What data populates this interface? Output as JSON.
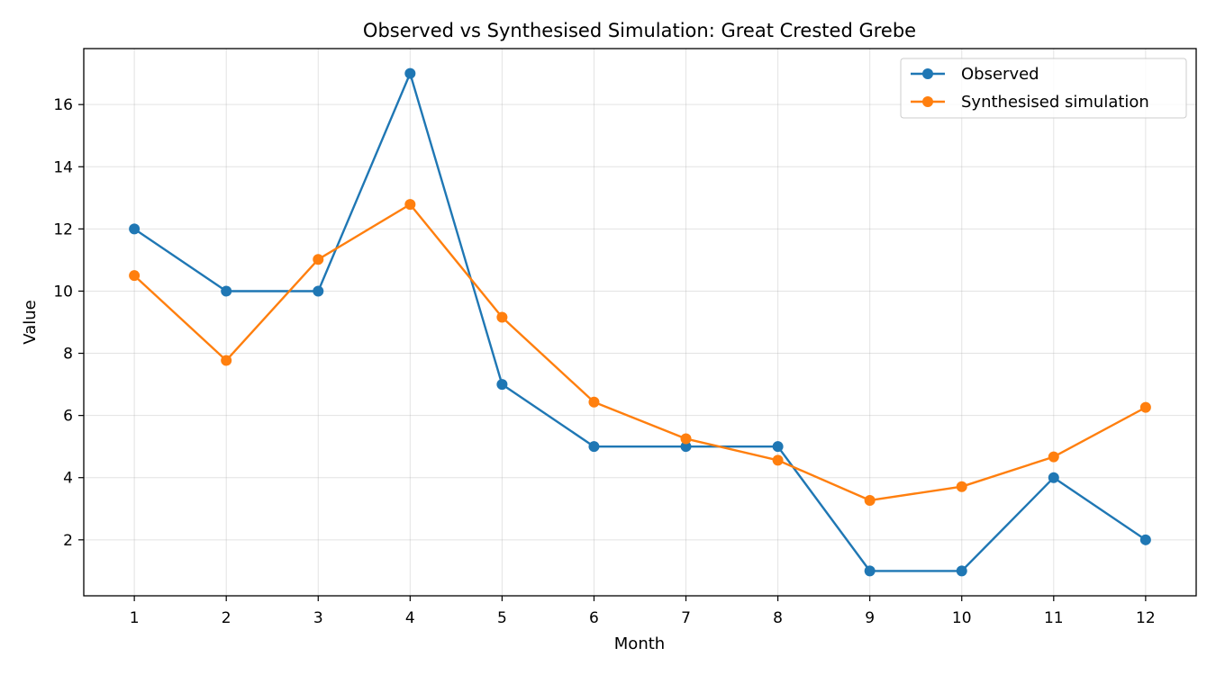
{
  "chart_data": {
    "type": "line",
    "title": "Observed vs Synthesised Simulation: Great Crested Grebe",
    "xlabel": "Month",
    "ylabel": "Value",
    "x": [
      1,
      2,
      3,
      4,
      5,
      6,
      7,
      8,
      9,
      10,
      11,
      12
    ],
    "xlim": [
      0.45,
      12.55
    ],
    "ylim": [
      0.2,
      17.8
    ],
    "yticks": [
      2,
      4,
      6,
      8,
      10,
      12,
      14,
      16
    ],
    "grid": true,
    "legend_position": "top-right",
    "series": [
      {
        "name": "Observed",
        "color": "#1f77b4",
        "marker": "circle",
        "values": [
          12,
          10,
          10,
          17,
          7,
          5,
          5,
          5,
          1,
          1,
          4,
          2
        ]
      },
      {
        "name": "Synthesised simulation",
        "color": "#ff7f0e",
        "marker": "circle",
        "values": [
          10.5,
          7.77,
          11.02,
          12.79,
          9.16,
          6.43,
          5.25,
          4.56,
          3.27,
          3.71,
          4.67,
          6.26
        ]
      }
    ]
  }
}
